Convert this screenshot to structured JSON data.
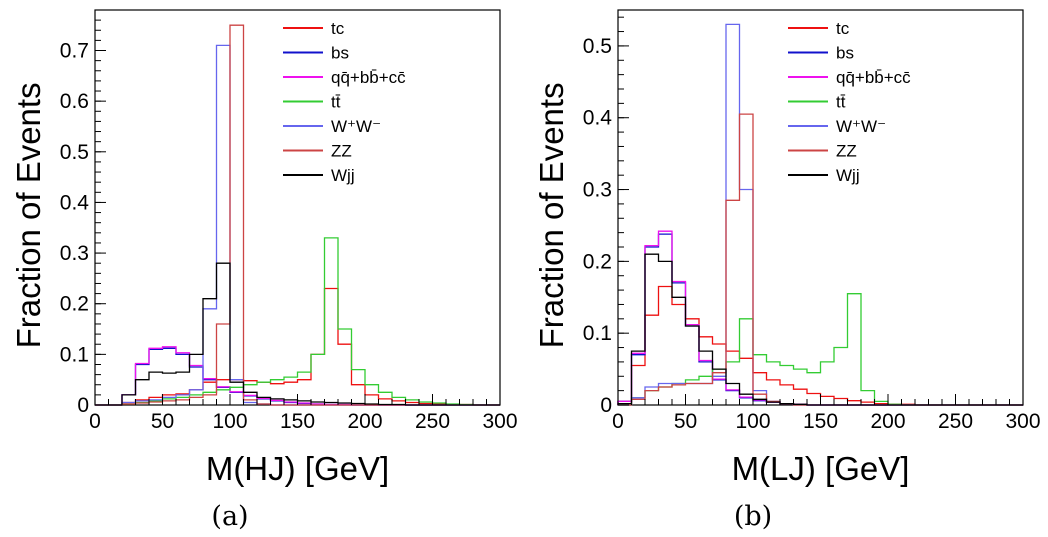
{
  "colors": {
    "tc": "#ee1111",
    "bs": "#1111cc",
    "qq": "#ee11ee",
    "tt": "#33cc33",
    "ww": "#6666ee",
    "zz": "#cc4444",
    "wjj": "#000000"
  },
  "chart_data": [
    {
      "type": "line",
      "caption": "(a)",
      "xlabel": "M(HJ) [GeV]",
      "ylabel": "Fraction of Events",
      "xlim": [
        0,
        300
      ],
      "ylim": [
        0,
        0.78
      ],
      "xticks": [
        "0",
        "50",
        "100",
        "150",
        "200",
        "250",
        "300"
      ],
      "yticks": [
        "0",
        "0.1",
        "0.2",
        "0.3",
        "0.4",
        "0.5",
        "0.6",
        "0.7"
      ],
      "bin_edges": [
        0,
        10,
        20,
        30,
        40,
        50,
        60,
        70,
        80,
        90,
        100,
        110,
        120,
        130,
        140,
        150,
        160,
        170,
        180,
        190,
        200,
        210,
        220,
        230,
        240,
        250,
        260,
        270,
        280,
        290,
        300
      ],
      "legend": [
        "tc",
        "bs",
        "qq̄+bb̄+cc̄",
        "tt̄",
        "W⁺W⁻",
        "ZZ",
        "Wjj"
      ],
      "series": [
        {
          "name": "tc",
          "color_key": "tc",
          "values": [
            0,
            0,
            0.005,
            0.01,
            0.015,
            0.02,
            0.022,
            0.03,
            0.045,
            0.05,
            0.05,
            0.048,
            0.045,
            0.042,
            0.045,
            0.05,
            0.1,
            0.23,
            0.12,
            0.04,
            0.02,
            0.012,
            0.008,
            0.005,
            0.003,
            0.002,
            0.001,
            0.001,
            0,
            0
          ]
        },
        {
          "name": "bs",
          "color_key": "bs",
          "values": [
            0,
            0,
            0.02,
            0.08,
            0.11,
            0.112,
            0.1,
            0.075,
            0.05,
            0.035,
            0.025,
            0.018,
            0.012,
            0.008,
            0.005,
            0.003,
            0.002,
            0.001,
            0.001,
            0,
            0,
            0,
            0,
            0,
            0,
            0,
            0,
            0,
            0,
            0
          ]
        },
        {
          "name": "qq̄+bb̄+cc̄",
          "color_key": "qq",
          "values": [
            0,
            0,
            0.02,
            0.082,
            0.112,
            0.115,
            0.103,
            0.078,
            0.052,
            0.036,
            0.026,
            0.019,
            0.013,
            0.009,
            0.006,
            0.004,
            0.002,
            0.001,
            0.001,
            0,
            0,
            0,
            0,
            0,
            0,
            0,
            0,
            0,
            0,
            0
          ]
        },
        {
          "name": "tt̄",
          "color_key": "tt",
          "values": [
            0,
            0,
            0.002,
            0.005,
            0.008,
            0.012,
            0.015,
            0.02,
            0.025,
            0.03,
            0.035,
            0.04,
            0.045,
            0.05,
            0.055,
            0.065,
            0.1,
            0.33,
            0.15,
            0.07,
            0.04,
            0.025,
            0.015,
            0.01,
            0.006,
            0.004,
            0.002,
            0.001,
            0,
            0
          ]
        },
        {
          "name": "W⁺W⁻",
          "color_key": "ww",
          "values": [
            0,
            0,
            0.005,
            0.008,
            0.01,
            0.015,
            0.02,
            0.03,
            0.19,
            0.71,
            0.05,
            0.005,
            0.002,
            0,
            0,
            0,
            0,
            0,
            0,
            0,
            0,
            0,
            0,
            0,
            0,
            0,
            0,
            0,
            0,
            0
          ]
        },
        {
          "name": "ZZ",
          "color_key": "zz",
          "values": [
            0,
            0,
            0.002,
            0.004,
            0.006,
            0.008,
            0.01,
            0.015,
            0.02,
            0.16,
            0.75,
            0.01,
            0.002,
            0,
            0,
            0,
            0,
            0,
            0,
            0,
            0,
            0,
            0,
            0,
            0,
            0,
            0,
            0,
            0,
            0
          ]
        },
        {
          "name": "Wjj",
          "color_key": "wjj",
          "values": [
            0,
            0,
            0.02,
            0.05,
            0.065,
            0.063,
            0.065,
            0.1,
            0.21,
            0.28,
            0.045,
            0.025,
            0.015,
            0.012,
            0.01,
            0.008,
            0.006,
            0.005,
            0.004,
            0.003,
            0.002,
            0.001,
            0.001,
            0,
            0,
            0,
            0,
            0,
            0,
            0
          ]
        }
      ]
    },
    {
      "type": "line",
      "caption": "(b)",
      "xlabel": "M(LJ) [GeV]",
      "ylabel": "Fraction of Events",
      "xlim": [
        0,
        300
      ],
      "ylim": [
        0,
        0.55
      ],
      "xticks": [
        "0",
        "50",
        "100",
        "150",
        "200",
        "250",
        "300"
      ],
      "yticks": [
        "0",
        "0.1",
        "0.2",
        "0.3",
        "0.4",
        "0.5"
      ],
      "bin_edges": [
        0,
        10,
        20,
        30,
        40,
        50,
        60,
        70,
        80,
        90,
        100,
        110,
        120,
        130,
        140,
        150,
        160,
        170,
        180,
        190,
        200,
        210,
        220,
        230,
        240,
        250,
        260,
        270,
        280,
        290,
        300
      ],
      "legend": [
        "tc",
        "bs",
        "qq̄+bb̄+cc̄",
        "tt̄",
        "W⁺W⁻",
        "ZZ",
        "Wjj"
      ],
      "series": [
        {
          "name": "tc",
          "color_key": "tc",
          "values": [
            0.005,
            0.055,
            0.125,
            0.165,
            0.14,
            0.12,
            0.095,
            0.085,
            0.075,
            0.065,
            0.045,
            0.035,
            0.028,
            0.022,
            0.016,
            0.012,
            0.009,
            0.006,
            0.004,
            0.002,
            0.001,
            0.001,
            0,
            0,
            0,
            0,
            0,
            0,
            0,
            0
          ]
        },
        {
          "name": "bs",
          "color_key": "bs",
          "values": [
            0.005,
            0.07,
            0.22,
            0.238,
            0.17,
            0.11,
            0.06,
            0.035,
            0.02,
            0.01,
            0.006,
            0.004,
            0.002,
            0.001,
            0,
            0,
            0,
            0,
            0,
            0,
            0,
            0,
            0,
            0,
            0,
            0,
            0,
            0,
            0,
            0
          ]
        },
        {
          "name": "qq̄+bb̄+cc̄",
          "color_key": "qq",
          "values": [
            0.005,
            0.072,
            0.222,
            0.242,
            0.172,
            0.112,
            0.062,
            0.036,
            0.021,
            0.011,
            0.007,
            0.004,
            0.002,
            0.001,
            0,
            0,
            0,
            0,
            0,
            0,
            0,
            0,
            0,
            0,
            0,
            0,
            0,
            0,
            0,
            0
          ]
        },
        {
          "name": "tt̄",
          "color_key": "tt",
          "values": [
            0,
            0.01,
            0.02,
            0.025,
            0.03,
            0.035,
            0.04,
            0.05,
            0.06,
            0.12,
            0.07,
            0.06,
            0.055,
            0.05,
            0.045,
            0.06,
            0.08,
            0.155,
            0.02,
            0.005,
            0.001,
            0,
            0,
            0,
            0,
            0,
            0,
            0,
            0,
            0
          ]
        },
        {
          "name": "W⁺W⁻",
          "color_key": "ww",
          "values": [
            0,
            0.01,
            0.025,
            0.03,
            0.03,
            0.03,
            0.03,
            0.04,
            0.53,
            0.3,
            0.02,
            0.005,
            0.002,
            0,
            0,
            0,
            0,
            0,
            0,
            0,
            0,
            0,
            0,
            0,
            0,
            0,
            0,
            0,
            0,
            0
          ]
        },
        {
          "name": "ZZ",
          "color_key": "zz",
          "values": [
            0,
            0.008,
            0.02,
            0.025,
            0.028,
            0.03,
            0.03,
            0.045,
            0.285,
            0.405,
            0.015,
            0.005,
            0.002,
            0,
            0,
            0,
            0,
            0,
            0,
            0,
            0,
            0,
            0,
            0,
            0,
            0,
            0,
            0,
            0,
            0
          ]
        },
        {
          "name": "Wjj",
          "color_key": "wjj",
          "values": [
            0.002,
            0.075,
            0.21,
            0.2,
            0.15,
            0.11,
            0.075,
            0.05,
            0.03,
            0.015,
            0.008,
            0.004,
            0.002,
            0.001,
            0,
            0,
            0,
            0,
            0,
            0,
            0,
            0,
            0,
            0,
            0,
            0,
            0,
            0,
            0,
            0
          ]
        }
      ]
    }
  ]
}
